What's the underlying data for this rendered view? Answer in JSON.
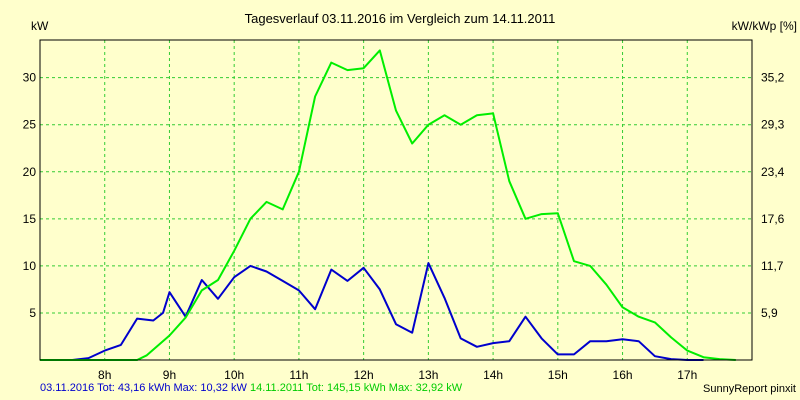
{
  "chart_data": {
    "type": "line",
    "title": "Tagesverlauf 03.11.2016 im Vergleich zum 14.11.2011",
    "ylabel_left": "kW",
    "ylabel_right": "kW/kWp [%]",
    "ylim": [
      0,
      34
    ],
    "xlim": [
      7.0,
      18.0
    ],
    "y_ticks": [
      5,
      10,
      15,
      20,
      25,
      30
    ],
    "right_ticks": [
      "5,9",
      "11,7",
      "17,6",
      "23,4",
      "29,3",
      "35,2"
    ],
    "x_ticks": [
      {
        "x": 8,
        "label": "8h"
      },
      {
        "x": 9,
        "label": "9h"
      },
      {
        "x": 10,
        "label": "10h"
      },
      {
        "x": 11,
        "label": "11h"
      },
      {
        "x": 12,
        "label": "12h"
      },
      {
        "x": 13,
        "label": "13h"
      },
      {
        "x": 14,
        "label": "14h"
      },
      {
        "x": 15,
        "label": "15h"
      },
      {
        "x": 16,
        "label": "16h"
      },
      {
        "x": 17,
        "label": "17h"
      }
    ],
    "grid": true,
    "series": [
      {
        "color": "#0000cc",
        "x": [
          7.0,
          7.5,
          7.75,
          8.0,
          8.25,
          8.5,
          8.75,
          8.9,
          9.0,
          9.25,
          9.5,
          9.75,
          10.0,
          10.25,
          10.5,
          10.75,
          11.0,
          11.25,
          11.5,
          11.75,
          12.0,
          12.25,
          12.5,
          12.75,
          13.0,
          13.25,
          13.5,
          13.75,
          14.0,
          14.25,
          14.5,
          14.75,
          15.0,
          15.25,
          15.5,
          15.75,
          16.0,
          16.25,
          16.5,
          16.75,
          17.0,
          17.25
        ],
        "y": [
          0,
          0,
          0.2,
          1.0,
          1.6,
          4.4,
          4.2,
          5.0,
          7.2,
          4.6,
          8.5,
          6.5,
          8.8,
          10.0,
          9.4,
          8.4,
          7.4,
          5.4,
          9.6,
          8.4,
          9.8,
          7.5,
          3.8,
          2.9,
          10.3,
          6.6,
          2.3,
          1.4,
          1.8,
          2.0,
          4.6,
          2.3,
          0.6,
          0.6,
          2.0,
          2.0,
          2.2,
          2.0,
          0.4,
          0.1,
          0,
          0
        ]
      },
      {
        "color": "#00ee00",
        "x": [
          7.0,
          8.5,
          8.65,
          9.0,
          9.25,
          9.5,
          9.75,
          10.0,
          10.25,
          10.5,
          10.75,
          11.0,
          11.25,
          11.5,
          11.75,
          12.0,
          12.25,
          12.5,
          12.75,
          13.0,
          13.25,
          13.5,
          13.75,
          14.0,
          14.25,
          14.5,
          14.75,
          15.0,
          15.25,
          15.5,
          15.75,
          16.0,
          16.25,
          16.5,
          16.75,
          17.0,
          17.25,
          17.5,
          17.75
        ],
        "y": [
          0,
          0,
          0.5,
          2.6,
          4.5,
          7.4,
          8.5,
          11.6,
          15.0,
          16.8,
          16.0,
          20.0,
          28.0,
          31.6,
          30.8,
          31.0,
          32.9,
          26.5,
          23.0,
          25.0,
          26.0,
          25.0,
          26.0,
          26.2,
          19.0,
          15.0,
          15.5,
          15.6,
          10.5,
          10.0,
          8.0,
          5.6,
          4.6,
          4.0,
          2.4,
          1.0,
          0.3,
          0.1,
          0
        ]
      }
    ]
  },
  "footer": {
    "blue_text": "03.11.2016 Tot: 43,16 kWh Max: 10,32 kW",
    "green_text": "14.11.2011 Tot: 145,15 kWh Max: 32,92 kW",
    "credit": "SunnyReport pinxit"
  },
  "colors": {
    "background": "#ffffcc",
    "plot_border": "#000000",
    "grid": "#33cc33",
    "blue_series": "#0000cc",
    "green_series": "#00ee00"
  }
}
